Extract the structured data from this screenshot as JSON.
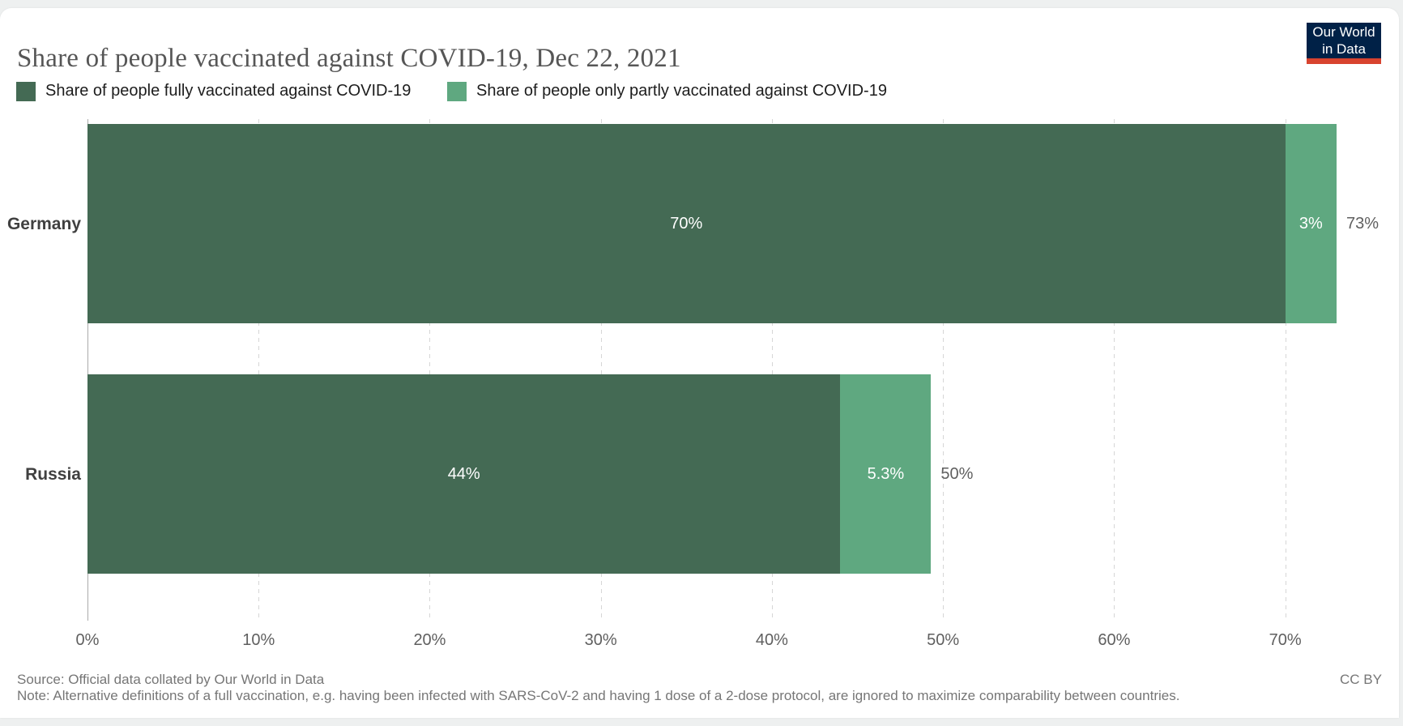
{
  "header": {
    "title": "Share of people vaccinated against COVID-19, Dec 22, 2021",
    "logo": {
      "line1": "Our World",
      "line2": "in Data",
      "bg": "#002147",
      "accent": "#d8432f"
    }
  },
  "legend": [
    {
      "label": "Share of people fully vaccinated against COVID-19",
      "color": "#446a54"
    },
    {
      "label": "Share of people only partly vaccinated against COVID-19",
      "color": "#5fa880"
    }
  ],
  "chart_data": {
    "type": "bar",
    "orientation": "horizontal",
    "stacked": true,
    "grid": "dashed-vertical",
    "categories": [
      "Germany",
      "Russia"
    ],
    "series": [
      {
        "name": "Share of people fully vaccinated against COVID-19",
        "color": "#446a54",
        "values": [
          70,
          44
        ],
        "labels": [
          "70%",
          "44%"
        ]
      },
      {
        "name": "Share of people only partly vaccinated against COVID-19",
        "color": "#5fa880",
        "values": [
          3,
          5.3
        ],
        "labels": [
          "3%",
          "5.3%"
        ]
      }
    ],
    "totals": [
      "73%",
      "50%"
    ],
    "x_ticks": [
      "0%",
      "10%",
      "20%",
      "30%",
      "40%",
      "50%",
      "60%",
      "70%"
    ],
    "x_tick_values": [
      0,
      10,
      20,
      30,
      40,
      50,
      60,
      70
    ],
    "xlim": [
      0,
      73
    ]
  },
  "footer": {
    "source": "Source: Official data collated by Our World in Data",
    "note": "Note: Alternative definitions of a full vaccination, e.g. having been infected with SARS-CoV-2 and having 1 dose of a 2-dose protocol, are ignored to maximize comparability between countries.",
    "license": "CC BY"
  }
}
